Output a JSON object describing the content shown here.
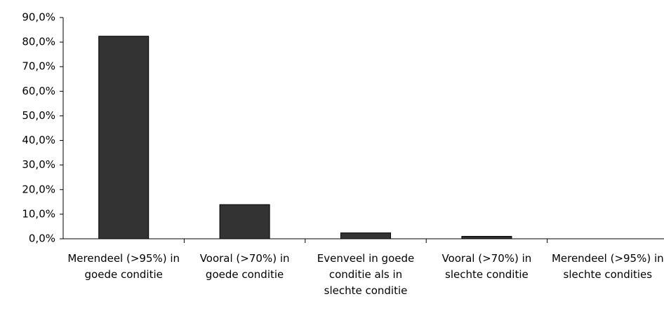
{
  "chart_data": {
    "type": "bar",
    "categories": [
      "Merendeel (>95%) in goede conditie",
      "Vooral (>70%) in goede conditie",
      "Evenveel in goede conditie als in slechte conditie",
      "Vooral (>70%) in slechte conditie",
      "Merendeel (>95%) in slechte condities"
    ],
    "values": [
      82.4,
      13.9,
      2.4,
      1.0,
      0
    ],
    "color": "#333333",
    "ylim": [
      0,
      90
    ],
    "yticks": [
      {
        "value": 0,
        "label": "0,0%"
      },
      {
        "value": 10,
        "label": "10,0%"
      },
      {
        "value": 20,
        "label": "20,0%"
      },
      {
        "value": 30,
        "label": "30,0%"
      },
      {
        "value": 40,
        "label": "40,0%"
      },
      {
        "value": 50,
        "label": "50,0%"
      },
      {
        "value": 60,
        "label": "60,0%"
      },
      {
        "value": 70,
        "label": "70,0%"
      },
      {
        "value": 80,
        "label": "80,0%"
      },
      {
        "value": 90,
        "label": "90,0%"
      }
    ]
  }
}
